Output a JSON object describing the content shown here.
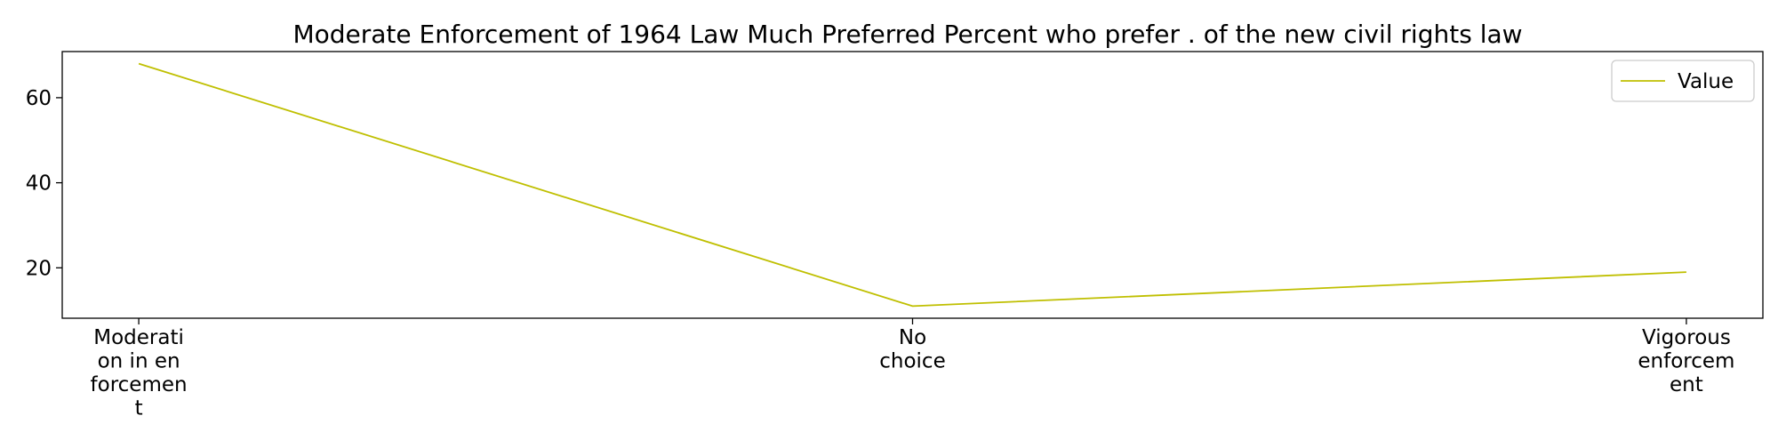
{
  "chart_data": {
    "type": "line",
    "title": "Moderate Enforcement of 1964 Law Much Preferred Percent who prefer . of the new civil rights law",
    "xlabel": "",
    "ylabel": "",
    "categories": [
      [
        "Moderati",
        "on in en",
        "forcemen",
        "t"
      ],
      [
        "No",
        "choice"
      ],
      [
        "Vigorous",
        "enforcem",
        "ent"
      ]
    ],
    "series": [
      {
        "name": "Value",
        "values": [
          68,
          11,
          19
        ],
        "color": "#bfbf00"
      }
    ],
    "ylim": [
      8.15,
      70.85
    ],
    "yticks": [
      20,
      40,
      60
    ],
    "grid": false,
    "legend": "top-right"
  }
}
